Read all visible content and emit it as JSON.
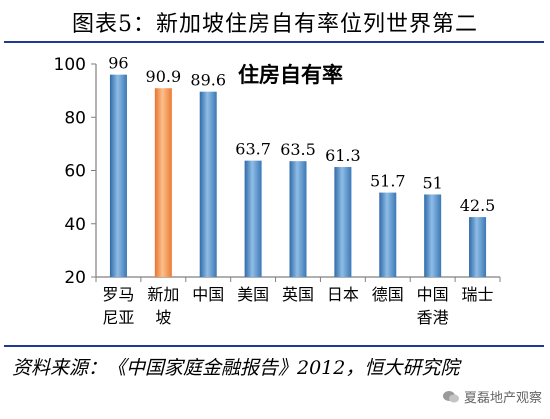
{
  "figure": {
    "title": "图表5：新加坡住房自有率位列世界第二",
    "source": "资料来源：《中国家庭金融报告》2012，恒大研究院",
    "watermark": "夏磊地产观察"
  },
  "chart_data": {
    "type": "bar",
    "title": "住房自有率",
    "categories": [
      [
        "罗马",
        "尼亚"
      ],
      [
        "新加",
        "坡"
      ],
      [
        "中国"
      ],
      [
        "美国"
      ],
      [
        "英国"
      ],
      [
        "日本"
      ],
      [
        "德国"
      ],
      [
        "中国",
        "香港"
      ],
      [
        "瑞士"
      ]
    ],
    "values": [
      96,
      90.9,
      89.6,
      63.7,
      63.5,
      61.3,
      51.7,
      51,
      42.5
    ],
    "value_labels": [
      "96",
      "90.9",
      "89.6",
      "63.7",
      "63.5",
      "61.3",
      "51.7",
      "51",
      "42.5"
    ],
    "highlight_index": 1,
    "ylim": [
      20,
      100
    ],
    "yticks": [
      20,
      40,
      60,
      80,
      100
    ],
    "grid": false,
    "colors": {
      "bar": "#4f8ac5",
      "highlight": "#f4934a",
      "axis": "#808080"
    }
  }
}
